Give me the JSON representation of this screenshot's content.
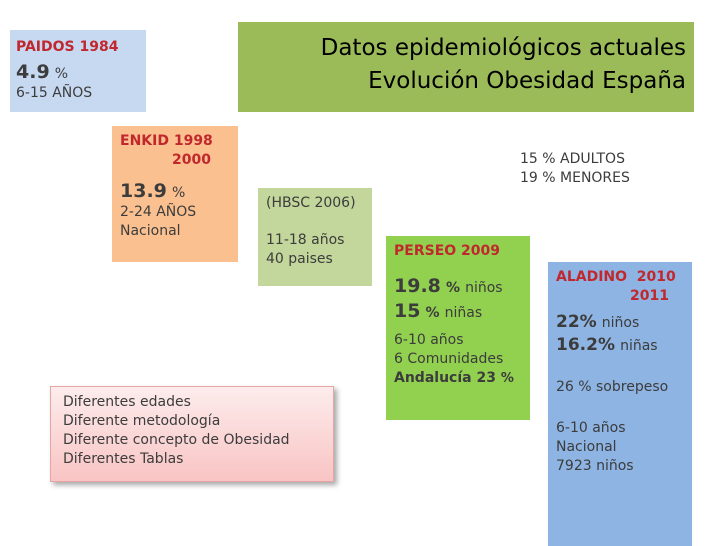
{
  "title": {
    "line1": "Datos epidemiológicos actuales",
    "line2": "Evolución Obesidad España"
  },
  "paidos": {
    "study": "PAIDOS 1984",
    "value": "4.9",
    "unit": "%",
    "ages": "6-15 AÑOS"
  },
  "enkid": {
    "study": "ENKID 1998",
    "year2": "2000",
    "value": "13.9",
    "unit": "%",
    "ages": "2-24 AÑOS",
    "scope": "Nacional"
  },
  "hbsc": {
    "study": "(HBSC 2006)",
    "ages": "11-18 años",
    "scope": "40 paises"
  },
  "perseo": {
    "study": "PERSEO 2009",
    "boys_value": "19.8",
    "boys_unit": "%",
    "boys_label": "niños",
    "girls_value": "15",
    "girls_unit": "%",
    "girls_label": "niñas",
    "ages": "6-10 años",
    "scope": "6 Comunidades",
    "andalucia": "Andalucía 23",
    "andalucia_unit": "%"
  },
  "aladino": {
    "study": "ALADINO  2010",
    "year2": "2011",
    "boys_value": "22%",
    "boys_label": "niños",
    "girls_value": "16.2%",
    "girls_label": "niñas",
    "overweight": "26 % sobrepeso",
    "ages": "6-10 años",
    "scope": "Nacional",
    "sample": "7923 niños"
  },
  "adults": {
    "line1": "15 % ADULTOS",
    "line2": "19 % MENORES"
  },
  "notes": [
    "Diferentes edades",
    "Diferente metodología",
    "Diferente concepto de Obesidad",
    "Diferentes Tablas"
  ],
  "colors": {
    "title_bg": "#9bbb59",
    "paidos_bg": "#c6d9f1",
    "enkid_bg": "#fac090",
    "hbsc_bg": "#c3d69b",
    "perseo_bg": "#92d050",
    "aladino_bg": "#8eb4e3",
    "accent_red": "#c0282d"
  }
}
